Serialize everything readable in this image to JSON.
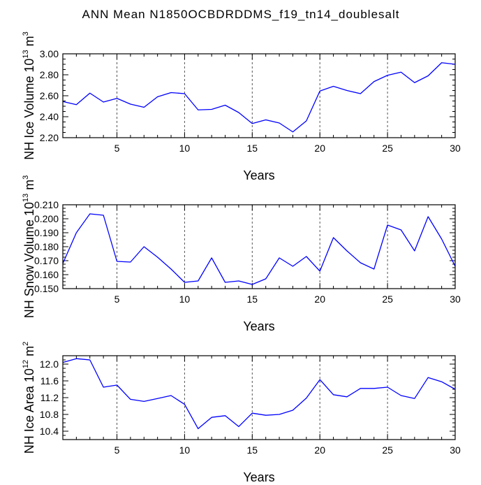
{
  "title": "ANN Mean N1850OCBDRDDMS_f19_tn14_doublesalt",
  "colors": {
    "line": "#0000ff",
    "frame": "#000000",
    "grid": "#555555"
  },
  "chart_data": [
    {
      "type": "line",
      "ylabel": {
        "text": "NH Ice Volume 10",
        "exponent": "13",
        "unit": "m",
        "unit_exponent": "3"
      },
      "xlabel": "Years",
      "xlim": [
        1,
        30
      ],
      "xticks": [
        5,
        10,
        15,
        20,
        25,
        30
      ],
      "ylim": [
        2.2,
        3.0
      ],
      "yticks": [
        "2.20",
        "2.40",
        "2.60",
        "2.80",
        "3.00"
      ],
      "grid": "vertical-dashed",
      "x": [
        1,
        2,
        3,
        4,
        5,
        6,
        7,
        8,
        9,
        10,
        11,
        12,
        13,
        14,
        15,
        16,
        17,
        18,
        19,
        20,
        21,
        22,
        23,
        24,
        25,
        26,
        27,
        28,
        29,
        30
      ],
      "values": [
        2.545,
        2.515,
        2.625,
        2.54,
        2.575,
        2.52,
        2.49,
        2.59,
        2.63,
        2.62,
        2.465,
        2.47,
        2.51,
        2.44,
        2.335,
        2.37,
        2.34,
        2.255,
        2.36,
        2.645,
        2.69,
        2.65,
        2.62,
        2.735,
        2.795,
        2.825,
        2.725,
        2.79,
        2.915,
        2.9
      ]
    },
    {
      "type": "line",
      "ylabel": {
        "text": "NH Snow Volume 10",
        "exponent": "13",
        "unit": "m",
        "unit_exponent": "3"
      },
      "xlabel": "Years",
      "xlim": [
        1,
        30
      ],
      "xticks": [
        5,
        10,
        15,
        20,
        25,
        30
      ],
      "ylim": [
        0.15,
        0.21
      ],
      "yticks": [
        "0.150",
        "0.160",
        "0.170",
        "0.180",
        "0.190",
        "0.200",
        "0.210"
      ],
      "grid": "vertical-dashed",
      "x": [
        1,
        2,
        3,
        4,
        5,
        6,
        7,
        8,
        9,
        10,
        11,
        12,
        13,
        14,
        15,
        16,
        17,
        18,
        19,
        20,
        21,
        22,
        23,
        24,
        25,
        26,
        27,
        28,
        29,
        30
      ],
      "values": [
        0.168,
        0.19,
        0.2035,
        0.2025,
        0.1695,
        0.169,
        0.18,
        0.1725,
        0.164,
        0.1545,
        0.1555,
        0.172,
        0.1545,
        0.1555,
        0.153,
        0.157,
        0.172,
        0.166,
        0.173,
        0.1625,
        0.1865,
        0.177,
        0.1685,
        0.164,
        0.1955,
        0.192,
        0.177,
        0.2015,
        0.1855,
        0.166
      ]
    },
    {
      "type": "line",
      "ylabel": {
        "text": "NH Ice Area 10",
        "exponent": "12",
        "unit": "m",
        "unit_exponent": "2"
      },
      "xlabel": "Years",
      "xlim": [
        1,
        30
      ],
      "xticks": [
        5,
        10,
        15,
        20,
        25,
        30
      ],
      "ylim": [
        10.2,
        12.2
      ],
      "yticks": [
        "10.4",
        "10.8",
        "11.2",
        "11.6",
        "12.0"
      ],
      "grid": "vertical-dashed",
      "x": [
        1,
        2,
        3,
        4,
        5,
        6,
        7,
        8,
        9,
        10,
        11,
        12,
        13,
        14,
        15,
        16,
        17,
        18,
        19,
        20,
        21,
        22,
        23,
        24,
        25,
        26,
        27,
        28,
        29,
        30
      ],
      "values": [
        12.04,
        12.13,
        12.1,
        11.45,
        11.5,
        11.16,
        11.11,
        11.18,
        11.25,
        11.04,
        10.46,
        10.73,
        10.77,
        10.51,
        10.83,
        10.78,
        10.8,
        10.9,
        11.19,
        11.63,
        11.27,
        11.22,
        11.42,
        11.42,
        11.45,
        11.25,
        11.18,
        11.68,
        11.58,
        11.4
      ]
    }
  ]
}
